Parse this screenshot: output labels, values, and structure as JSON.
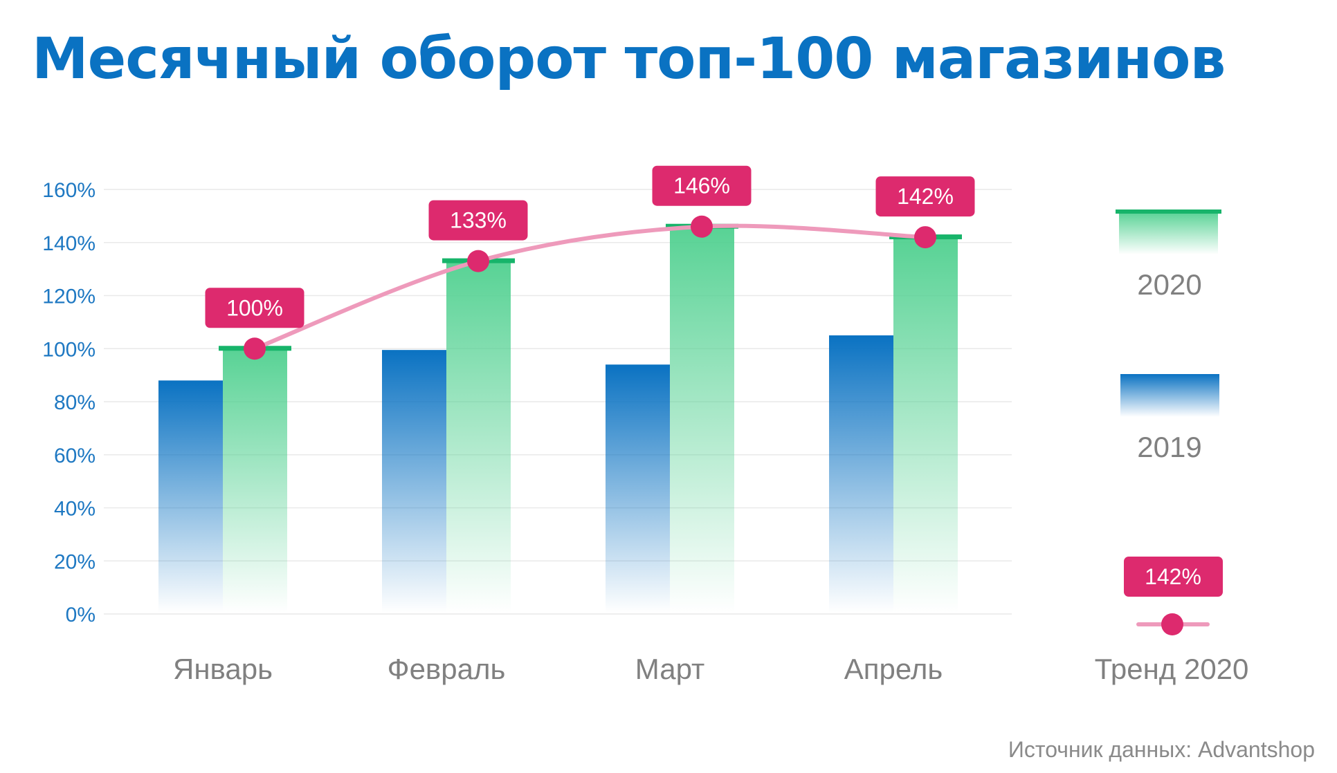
{
  "chart_data": {
    "type": "bar",
    "title": "Месячный оборот топ-100 магазинов",
    "categories": [
      "Январь",
      "Февраль",
      "Март",
      "Апрель"
    ],
    "series": [
      {
        "name": "2019",
        "kind": "bar",
        "values": [
          88,
          99.5,
          94,
          105
        ]
      },
      {
        "name": "2020",
        "kind": "bar",
        "values": [
          100,
          133,
          146,
          142
        ]
      },
      {
        "name": "Тренд 2020",
        "kind": "line",
        "values": [
          100,
          133,
          146,
          142
        ]
      }
    ],
    "data_labels": [
      "100%",
      "133%",
      "146%",
      "142%"
    ],
    "y_ticks": [
      "0%",
      "20%",
      "40%",
      "60%",
      "80%",
      "100%",
      "120%",
      "140%",
      "160%"
    ],
    "ylim": [
      0,
      160
    ],
    "grid": true,
    "legend": {
      "position": "right",
      "items": [
        {
          "label": "2020"
        },
        {
          "label": "2019"
        },
        {
          "label": "Тренд 2020",
          "sample_value": "142%"
        }
      ]
    },
    "colors": {
      "bar_2019": "#0a72c2",
      "bar_2020": "#5dd49a",
      "bar_2020_cap": "#17b46a",
      "trend_line": "#ee9abb",
      "trend_marker": "#dd2a6e",
      "label_box": "#dd2a6e",
      "axis_text": "#1e78c2",
      "category_text": "#808080"
    }
  },
  "source": "Источник данных: Advantshop"
}
